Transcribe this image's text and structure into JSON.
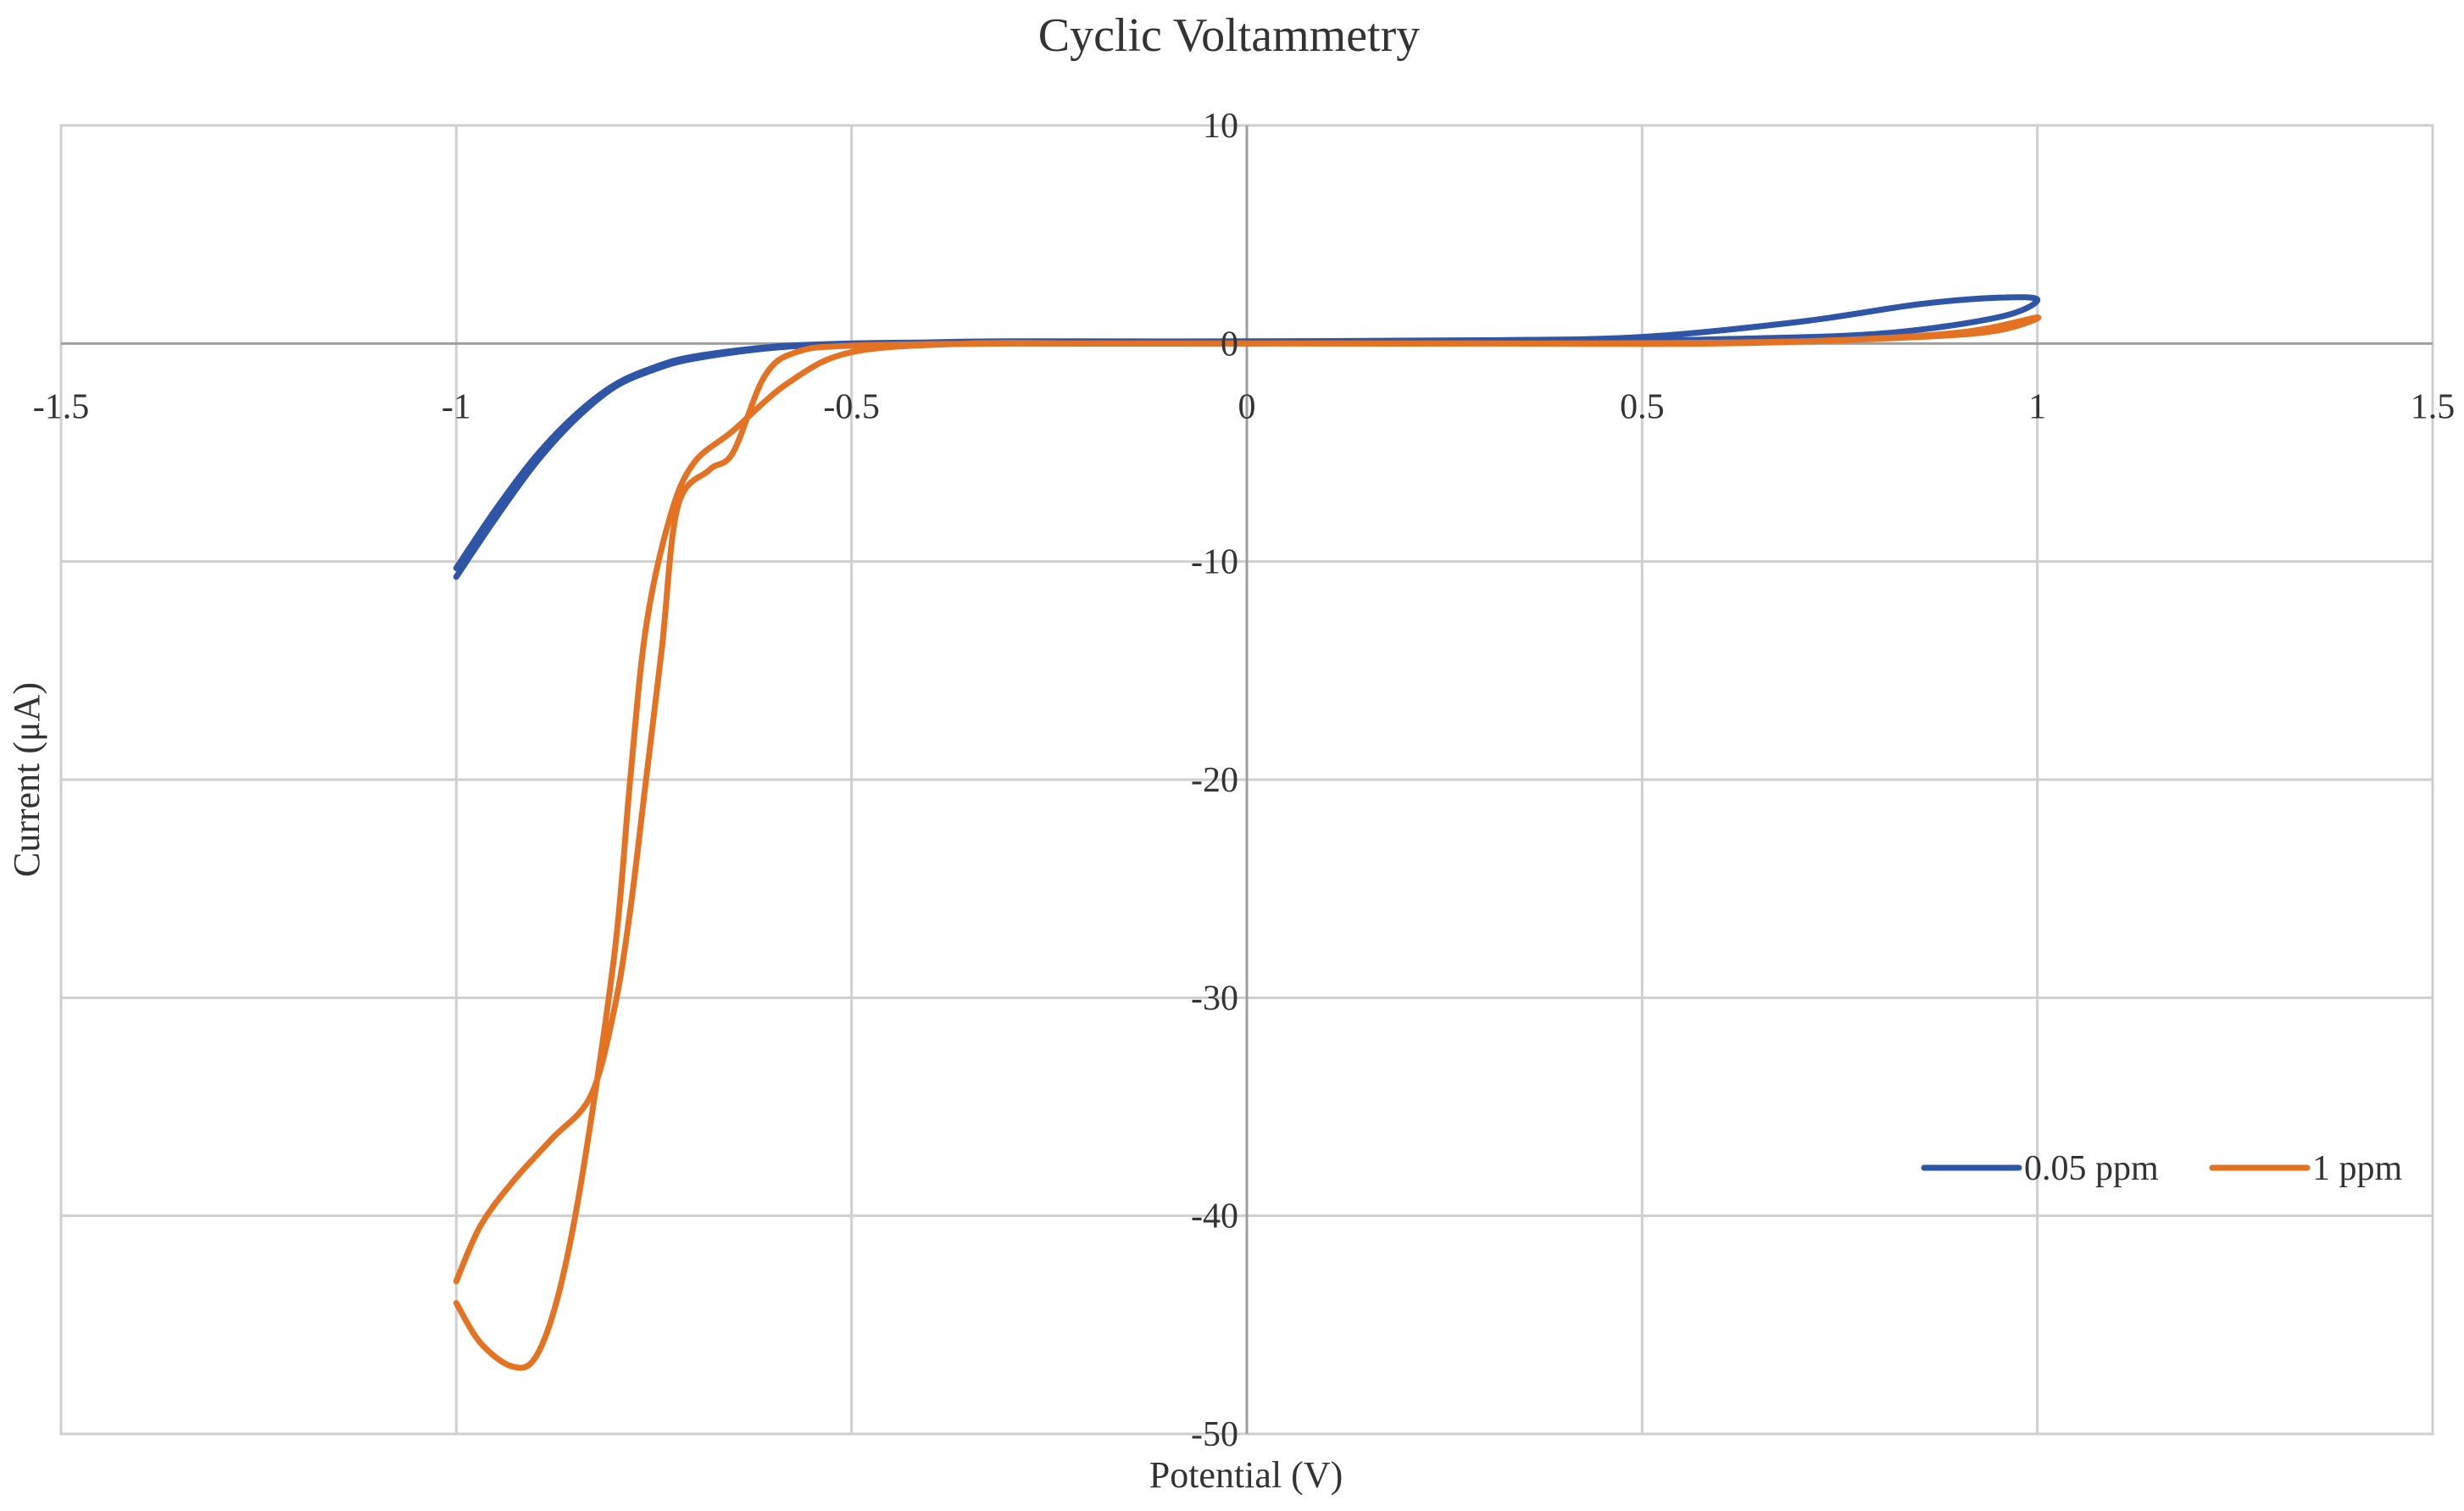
{
  "chart_data": {
    "type": "scatter",
    "title": "Cyclic Voltammetry",
    "xlabel": "Potential (V)",
    "ylabel": "Current (μA)",
    "xlim": [
      -1.5,
      1.5
    ],
    "ylim": [
      -50,
      10
    ],
    "x_ticks": [
      -1.5,
      -1,
      -0.5,
      0,
      0.5,
      1,
      1.5
    ],
    "x_tick_labels": [
      "-1.5",
      "-1",
      "-0.5",
      "0",
      "0.5",
      "1",
      "1.5"
    ],
    "y_ticks": [
      10,
      0,
      -10,
      -20,
      -30,
      -40,
      -50
    ],
    "y_tick_labels": [
      "10",
      "0",
      "-10",
      "-20",
      "-30",
      "-40",
      "-50"
    ],
    "grid": true,
    "legend_position": "right",
    "series": [
      {
        "name": "0.05 ppm",
        "color": "#2E55A6",
        "x": [
          -1.0,
          -0.95,
          -0.9,
          -0.85,
          -0.8,
          -0.75,
          -0.7,
          -0.6,
          -0.5,
          -0.4,
          -0.3,
          0.0,
          0.3,
          0.5,
          0.7,
          0.85,
          0.95,
          1.0,
          0.95,
          0.8,
          0.6,
          0.4,
          0.2,
          0.0,
          -0.3,
          -0.5,
          -0.6,
          -0.7,
          -0.75,
          -0.8,
          -0.85,
          -0.9,
          -0.95,
          -1.0
        ],
        "y": [
          -10.3,
          -7.6,
          -5.2,
          -3.3,
          -1.9,
          -1.1,
          -0.6,
          -0.15,
          0.0,
          0.05,
          0.1,
          0.1,
          0.15,
          0.3,
          1.0,
          1.8,
          2.1,
          2.0,
          1.2,
          0.45,
          0.2,
          0.1,
          0.1,
          0.0,
          0.0,
          -0.05,
          -0.2,
          -0.7,
          -1.2,
          -2.0,
          -3.5,
          -5.5,
          -8.0,
          -10.7
        ]
      },
      {
        "name": "1 ppm",
        "color": "#E37222",
        "x": [
          -1.0,
          -0.97,
          -0.93,
          -0.9,
          -0.87,
          -0.84,
          -0.8,
          -0.78,
          -0.76,
          -0.73,
          -0.7,
          -0.65,
          -0.58,
          -0.5,
          -0.35,
          -0.2,
          0.0,
          0.3,
          0.6,
          0.85,
          0.95,
          1.0,
          0.9,
          0.7,
          0.4,
          0.0,
          -0.3,
          -0.5,
          -0.57,
          -0.61,
          -0.65,
          -0.68,
          -0.72,
          -0.74,
          -0.76,
          -0.78,
          -0.8,
          -0.83,
          -0.88,
          -0.93,
          -0.97,
          -1.0
        ],
        "y": [
          -44.0,
          -45.8,
          -46.9,
          -46.5,
          -43.5,
          -38.0,
          -28.0,
          -20.0,
          -13.0,
          -8.0,
          -5.5,
          -4.0,
          -1.8,
          -0.4,
          0.0,
          0.0,
          0.0,
          0.0,
          0.0,
          0.3,
          0.6,
          1.2,
          0.5,
          0.1,
          0.0,
          0.0,
          0.0,
          -0.1,
          -0.4,
          -1.5,
          -5.0,
          -5.8,
          -7.5,
          -14.0,
          -20.0,
          -26.0,
          -30.5,
          -34.5,
          -36.5,
          -38.5,
          -40.5,
          -43.0
        ]
      }
    ]
  }
}
